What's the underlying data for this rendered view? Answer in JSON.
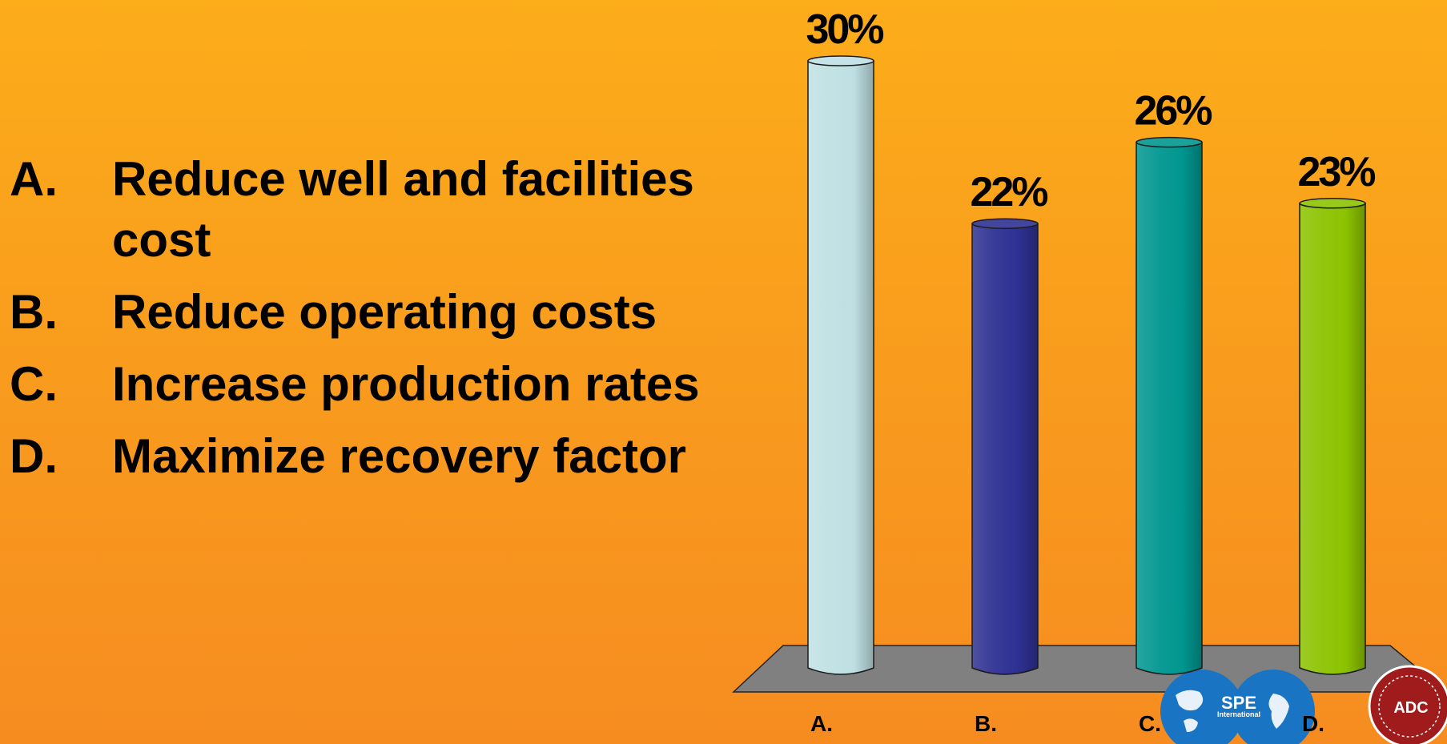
{
  "slide": {
    "options": [
      {
        "letter": "A.",
        "lines": [
          "Reduce well and facilities",
          "cost"
        ]
      },
      {
        "letter": "B.",
        "lines": [
          "Reduce operating costs"
        ]
      },
      {
        "letter": "C.",
        "lines": [
          "Increase production rates"
        ]
      },
      {
        "letter": "D.",
        "lines": [
          "Maximize recovery factor"
        ]
      }
    ]
  },
  "chart_data": {
    "type": "bar",
    "categories": [
      "A.",
      "B.",
      "C.",
      "D."
    ],
    "values": [
      30,
      22,
      26,
      23
    ],
    "data_labels": [
      "30%",
      "22%",
      "26%",
      "23%"
    ],
    "unit": "%",
    "ylim": [
      0,
      30
    ],
    "grid": false,
    "colors": [
      "#bfe0e3",
      "#2e3192",
      "#00968f",
      "#8cc300"
    ],
    "floor_color": "#808080"
  },
  "logos": {
    "spe": {
      "text": "SPE",
      "subtitle": "International",
      "color": "#1a74c4"
    },
    "adc": {
      "text": "ADC",
      "color": "#a01c1c"
    }
  }
}
